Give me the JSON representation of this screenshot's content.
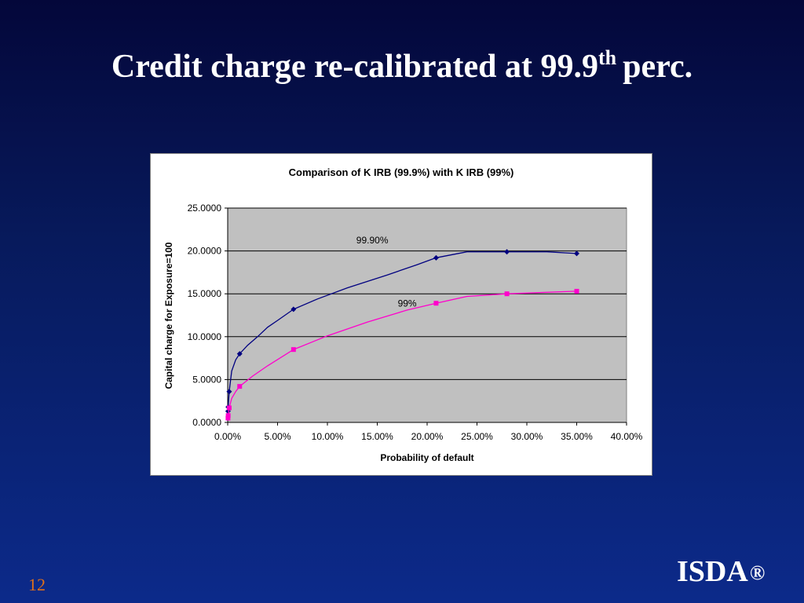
{
  "slide": {
    "title_main": "Credit charge re-calibrated at 99.9",
    "title_sup": "th",
    "title_tail": "perc.",
    "page_number": "12",
    "logo_text": "ISDA",
    "logo_mark": "®"
  },
  "chart_data": {
    "type": "line",
    "title": "Comparison of K IRB (99.9%) with K IRB (99%)",
    "xlabel": "Probability of default",
    "ylabel": "Capital charge for Exposure=100",
    "xlim": [
      0,
      0.4
    ],
    "ylim": [
      0,
      25
    ],
    "x_ticks": [
      0,
      0.05,
      0.1,
      0.15,
      0.2,
      0.25,
      0.3,
      0.35,
      0.4
    ],
    "x_tick_labels": [
      "0.00%",
      "5.00%",
      "10.00%",
      "15.00%",
      "20.00%",
      "25.00%",
      "30.00%",
      "35.00%",
      "40.00%"
    ],
    "y_ticks": [
      0,
      5,
      10,
      15,
      20,
      25
    ],
    "y_tick_labels": [
      "0.0000",
      "5.0000",
      "10.0000",
      "15.0000",
      "20.0000",
      "25.0000"
    ],
    "grid": "horizontal",
    "plot_background": "#c0c0c0",
    "series": [
      {
        "name": "99.90%",
        "color": "#000080",
        "marker": "diamond",
        "points": [
          {
            "x": 0.0003,
            "y": 1.3
          },
          {
            "x": 0.0005,
            "y": 1.8
          },
          {
            "x": 0.0015,
            "y": 3.6
          },
          {
            "x": 0.012,
            "y": 8.0
          },
          {
            "x": 0.066,
            "y": 13.2
          },
          {
            "x": 0.209,
            "y": 19.2
          },
          {
            "x": 0.28,
            "y": 19.9
          },
          {
            "x": 0.35,
            "y": 19.7
          }
        ],
        "curve": [
          {
            "x": 0.0,
            "y": 1.0
          },
          {
            "x": 0.0003,
            "y": 1.3
          },
          {
            "x": 0.0005,
            "y": 1.8
          },
          {
            "x": 0.0015,
            "y": 3.6
          },
          {
            "x": 0.004,
            "y": 6.0
          },
          {
            "x": 0.008,
            "y": 7.3
          },
          {
            "x": 0.012,
            "y": 8.0
          },
          {
            "x": 0.02,
            "y": 9.0
          },
          {
            "x": 0.03,
            "y": 10.0
          },
          {
            "x": 0.04,
            "y": 11.1
          },
          {
            "x": 0.05,
            "y": 11.9
          },
          {
            "x": 0.066,
            "y": 13.2
          },
          {
            "x": 0.09,
            "y": 14.4
          },
          {
            "x": 0.12,
            "y": 15.7
          },
          {
            "x": 0.16,
            "y": 17.2
          },
          {
            "x": 0.19,
            "y": 18.4
          },
          {
            "x": 0.209,
            "y": 19.2
          },
          {
            "x": 0.24,
            "y": 19.9
          },
          {
            "x": 0.28,
            "y": 19.9
          },
          {
            "x": 0.32,
            "y": 19.9
          },
          {
            "x": 0.35,
            "y": 19.7
          }
        ]
      },
      {
        "name": "99%",
        "color": "#ff00cc",
        "marker": "square",
        "points": [
          {
            "x": 0.0003,
            "y": 0.5
          },
          {
            "x": 0.0005,
            "y": 0.8
          },
          {
            "x": 0.0015,
            "y": 1.7
          },
          {
            "x": 0.012,
            "y": 4.2
          },
          {
            "x": 0.066,
            "y": 8.5
          },
          {
            "x": 0.209,
            "y": 13.9
          },
          {
            "x": 0.28,
            "y": 15.0
          },
          {
            "x": 0.35,
            "y": 15.3
          }
        ],
        "curve": [
          {
            "x": 0.0,
            "y": 0.3
          },
          {
            "x": 0.0003,
            "y": 0.5
          },
          {
            "x": 0.0005,
            "y": 0.8
          },
          {
            "x": 0.0015,
            "y": 1.7
          },
          {
            "x": 0.004,
            "y": 2.8
          },
          {
            "x": 0.008,
            "y": 3.6
          },
          {
            "x": 0.012,
            "y": 4.2
          },
          {
            "x": 0.025,
            "y": 5.4
          },
          {
            "x": 0.04,
            "y": 6.6
          },
          {
            "x": 0.066,
            "y": 8.5
          },
          {
            "x": 0.1,
            "y": 10.1
          },
          {
            "x": 0.14,
            "y": 11.7
          },
          {
            "x": 0.18,
            "y": 13.1
          },
          {
            "x": 0.209,
            "y": 13.9
          },
          {
            "x": 0.24,
            "y": 14.7
          },
          {
            "x": 0.28,
            "y": 15.0
          },
          {
            "x": 0.35,
            "y": 15.3
          }
        ]
      }
    ],
    "annotations": [
      {
        "text": "99.90%",
        "x": 0.145,
        "y": 20.9
      },
      {
        "text": "99%",
        "x": 0.18,
        "y": 13.5
      }
    ]
  }
}
